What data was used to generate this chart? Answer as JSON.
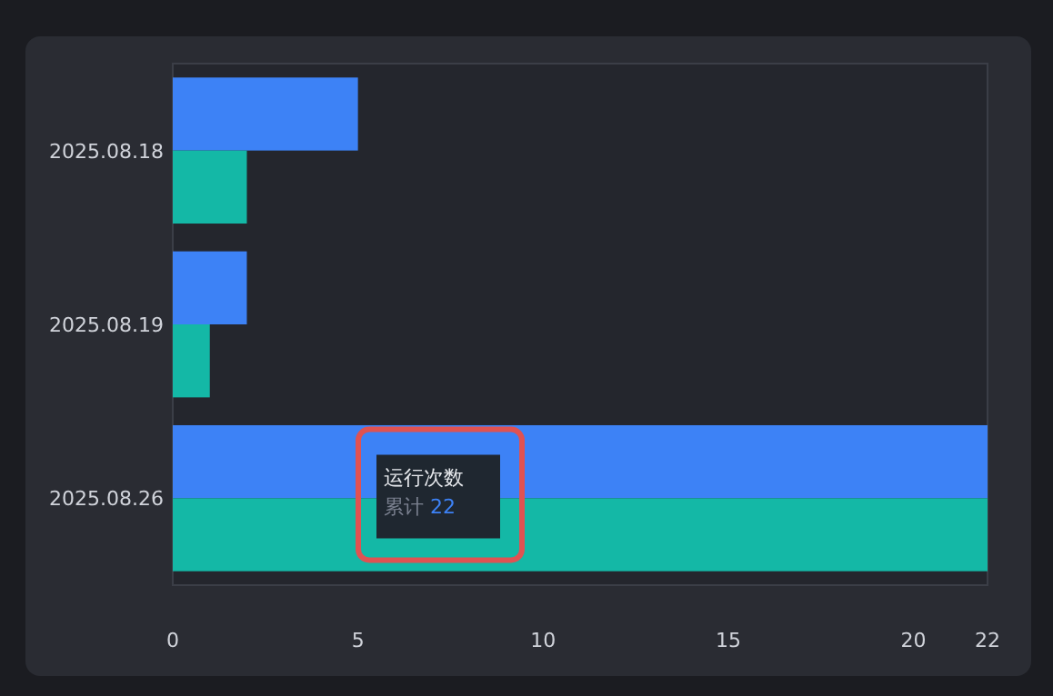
{
  "chart_data": {
    "type": "bar",
    "orientation": "horizontal",
    "categories": [
      "2025.08.18",
      "2025.08.19",
      "2025.08.26"
    ],
    "series": [
      {
        "color": "#3d82f6",
        "values": [
          5,
          2,
          22
        ]
      },
      {
        "color": "#14b8a6",
        "values": [
          2,
          1,
          22
        ]
      }
    ],
    "xlim": [
      0,
      22
    ],
    "xticks": [
      0,
      5,
      10,
      15,
      20,
      22
    ],
    "annotations": [
      "运行次数",
      "累计 22"
    ]
  }
}
